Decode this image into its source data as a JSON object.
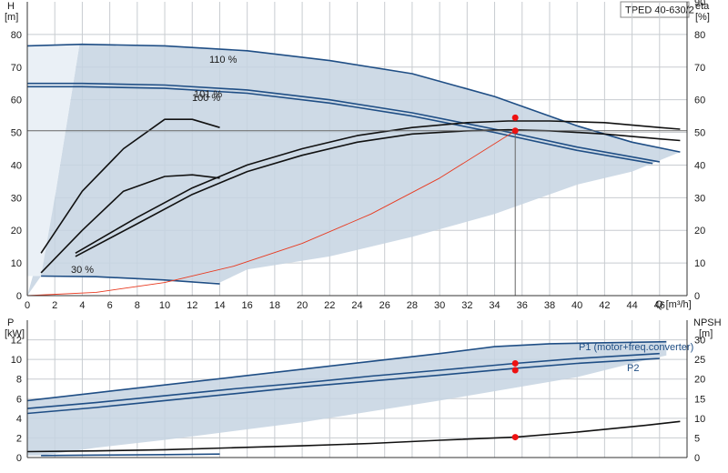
{
  "header": {
    "model": "TPED 40-630/2"
  },
  "axes": {
    "H_label": "H",
    "H_unit": "[m]",
    "eta_label": "eta",
    "eta_unit": "[%]",
    "Q_label": "Q [m³/h]",
    "P_label": "P",
    "P_unit": "[kW]",
    "NPSH_label": "NPSH",
    "NPSH_unit": "[m]"
  },
  "annotations": {
    "speed_max": "110 %",
    "speed_101": "101 %",
    "speed_100": "100 %",
    "speed_min": "30 %",
    "p1_label": "P1 (motor+freq.converter)",
    "p2_label": "P2"
  },
  "colors": {
    "envelope_fill": "#c5d3e2",
    "curve_blue": "#1f4e85",
    "curve_black": "#111111",
    "system_curve": "#e8391f",
    "duty_point": "#ee1111",
    "grid": "#c8ccd0"
  },
  "chart_data": [
    {
      "type": "line",
      "panel": "head",
      "xlim": [
        0,
        48
      ],
      "ylim": [
        0,
        90
      ],
      "y2lim": [
        0,
        90
      ],
      "x_ticks": [
        0,
        2,
        4,
        6,
        8,
        10,
        12,
        14,
        16,
        18,
        20,
        22,
        24,
        26,
        28,
        30,
        32,
        34,
        36,
        38,
        40,
        42,
        44,
        46,
        48
      ],
      "y_ticks": [
        0,
        10,
        20,
        30,
        40,
        50,
        60,
        70,
        80
      ],
      "y2_ticks": [
        0,
        10,
        20,
        30,
        40,
        50,
        60,
        70,
        80,
        90
      ],
      "grid": true,
      "series": [
        {
          "name": "110 %",
          "axis": "H",
          "color": "#1f4e85",
          "x": [
            0,
            4,
            10,
            16,
            22,
            28,
            34,
            40,
            44,
            47.5
          ],
          "y": [
            76.5,
            77,
            76.5,
            75,
            72,
            68,
            61,
            52,
            47,
            44
          ]
        },
        {
          "name": "101 %",
          "axis": "H",
          "color": "#1f4e85",
          "x": [
            0,
            4,
            10,
            16,
            22,
            28,
            34,
            40,
            46
          ],
          "y": [
            65,
            65,
            64.5,
            63,
            60,
            56,
            51,
            45.5,
            41
          ]
        },
        {
          "name": "100 %",
          "axis": "H",
          "color": "#1f4e85",
          "x": [
            0,
            4,
            10,
            16,
            22,
            28,
            34,
            40,
            45.5
          ],
          "y": [
            64,
            64,
            63.5,
            62,
            59,
            55,
            50,
            44.5,
            40.5
          ]
        },
        {
          "axis": "H",
          "color": "#1f4e85",
          "x": [
            1,
            5,
            10,
            14
          ],
          "y": [
            6,
            5.8,
            4.8,
            3.6
          ]
        },
        {
          "axis": "eta",
          "color": "#111111",
          "x": [
            3.5,
            8,
            12,
            16,
            20,
            24,
            28,
            32,
            35,
            38,
            42,
            46,
            47.5
          ],
          "y": [
            12,
            22,
            31,
            38,
            43,
            47,
            49.5,
            50.5,
            50.8,
            50.5,
            49.5,
            48,
            47.5
          ]
        },
        {
          "axis": "eta",
          "color": "#111111",
          "x": [
            3.5,
            8,
            12,
            16,
            20,
            24,
            28,
            32,
            35,
            38,
            42,
            46,
            47.5
          ],
          "y": [
            13,
            24,
            33,
            40,
            45,
            49,
            51.5,
            53,
            53.5,
            53.5,
            53,
            51.5,
            51
          ]
        },
        {
          "axis": "eta",
          "color": "#111111",
          "x": [
            1,
            4,
            7,
            10,
            12,
            14
          ],
          "y": [
            7,
            20,
            32,
            36.5,
            37,
            36
          ]
        },
        {
          "axis": "eta",
          "color": "#111111",
          "x": [
            1,
            4,
            7,
            10,
            12,
            14
          ],
          "y": [
            13,
            32,
            45,
            54,
            54,
            51.5
          ]
        },
        {
          "axis": "H",
          "color": "#e8391f",
          "name": "",
          "x": [
            0,
            5,
            10,
            15,
            20,
            25,
            30,
            35.5
          ],
          "y": [
            0,
            1,
            4,
            9,
            16,
            25,
            36,
            50.5
          ]
        }
      ],
      "duty_points": [
        {
          "x": 35.5,
          "y": 50.5
        },
        {
          "x": 35.5,
          "y": 54.5
        }
      ],
      "duty_H": 50.5,
      "duty_Q": 35.5
    },
    {
      "type": "line",
      "panel": "power",
      "xlim": [
        0,
        48
      ],
      "ylim": [
        0,
        14
      ],
      "y2lim": [
        0,
        35
      ],
      "y_ticks": [
        0,
        2,
        4,
        6,
        8,
        10,
        12
      ],
      "y2_ticks": [
        0,
        5,
        10,
        15,
        20,
        25,
        30
      ],
      "grid": true,
      "series": [
        {
          "name": "P1 (motor+freq.converter)",
          "axis": "P",
          "color": "#1f4e85",
          "x": [
            0,
            5,
            10,
            15,
            20,
            25,
            30,
            34,
            38,
            42,
            46.5
          ],
          "y": [
            5.8,
            6.6,
            7.4,
            8.2,
            9,
            9.8,
            10.6,
            11.3,
            11.6,
            11.7,
            11.8
          ]
        },
        {
          "axis": "P",
          "color": "#1f4e85",
          "x": [
            0,
            5,
            10,
            15,
            20,
            25,
            30,
            35.5,
            40,
            46
          ],
          "y": [
            5,
            5.6,
            6.3,
            7,
            7.6,
            8.3,
            8.9,
            9.6,
            10.1,
            10.6
          ]
        },
        {
          "name": "P2",
          "axis": "P",
          "color": "#1f4e85",
          "x": [
            0,
            5,
            10,
            15,
            20,
            25,
            30,
            35.5,
            40,
            46
          ],
          "y": [
            4.5,
            5.1,
            5.8,
            6.5,
            7.2,
            7.8,
            8.4,
            9.1,
            9.6,
            10.1
          ]
        },
        {
          "axis": "P",
          "color": "#1f4e85",
          "x": [
            1,
            5,
            10,
            14
          ],
          "y": [
            0.2,
            0.25,
            0.3,
            0.35
          ]
        },
        {
          "axis": "NPSH",
          "color": "#111111",
          "x": [
            0,
            5,
            10,
            15,
            20,
            25,
            30,
            35.5,
            40,
            45,
            47.5
          ],
          "y": [
            1.5,
            1.7,
            2,
            2.5,
            3,
            3.6,
            4.4,
            5.2,
            6.5,
            8.2,
            9.2
          ]
        }
      ],
      "duty_points": [
        {
          "axis": "P",
          "x": 35.5,
          "y": 9.6
        },
        {
          "axis": "P",
          "x": 35.5,
          "y": 8.9
        },
        {
          "axis": "NPSH",
          "x": 35.5,
          "y": 5.2
        }
      ]
    }
  ]
}
